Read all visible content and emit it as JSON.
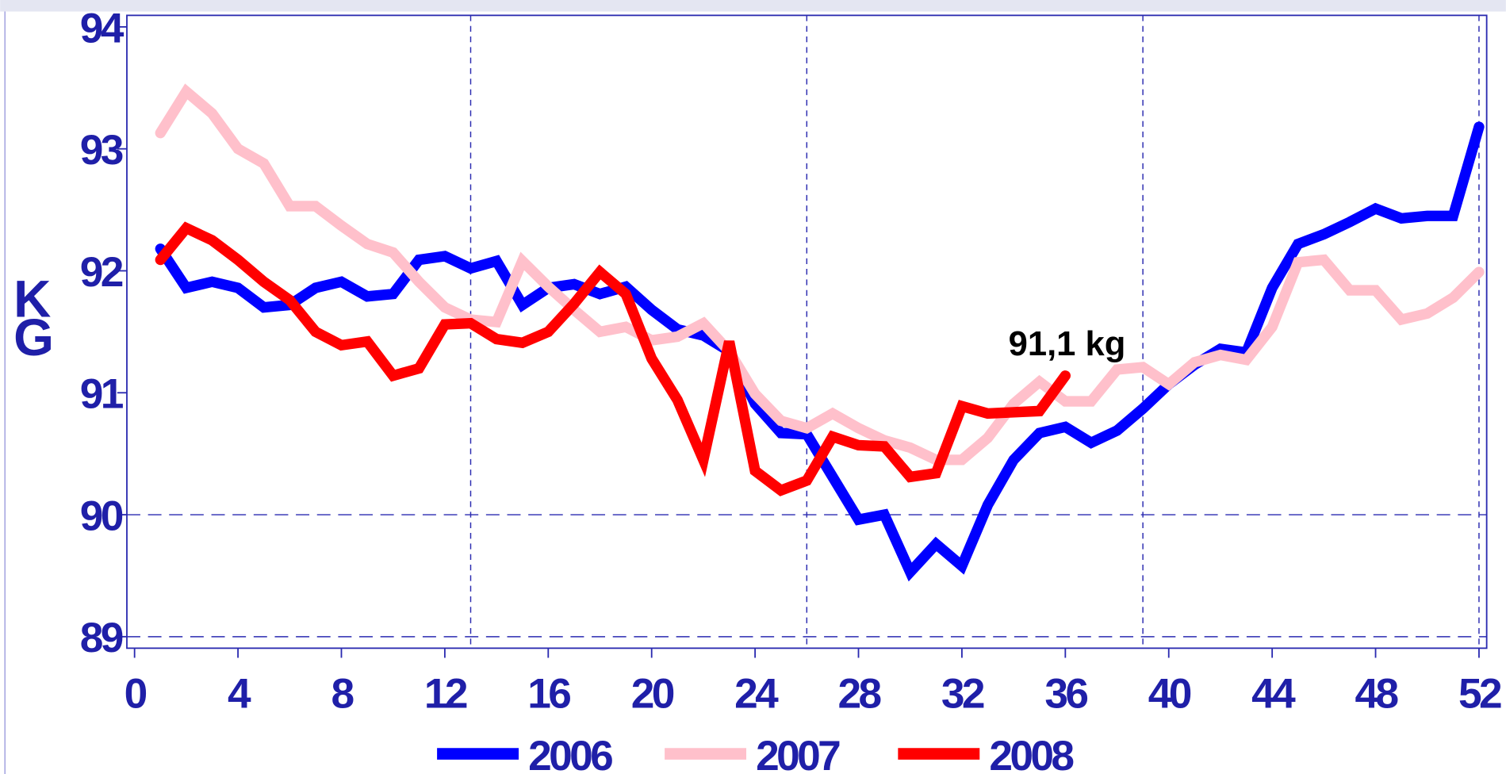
{
  "chart_data": {
    "type": "line",
    "y_label": "KG",
    "annotation": "91,1 kg",
    "x": [
      1,
      2,
      3,
      4,
      5,
      6,
      7,
      8,
      9,
      10,
      11,
      12,
      13,
      14,
      15,
      16,
      17,
      18,
      19,
      20,
      21,
      22,
      23,
      24,
      25,
      26,
      27,
      28,
      29,
      30,
      31,
      32,
      33,
      34,
      35,
      36,
      37,
      38,
      39,
      40,
      41,
      42,
      43,
      44,
      45,
      46,
      47,
      48,
      49,
      50,
      51,
      52
    ],
    "series": [
      {
        "name": "2006",
        "color": "#0000ff",
        "values": [
          92.18,
          91.86,
          91.91,
          91.86,
          91.7,
          91.72,
          91.86,
          91.91,
          91.79,
          91.81,
          92.09,
          92.12,
          92.02,
          92.08,
          91.72,
          91.86,
          91.89,
          91.81,
          91.87,
          91.68,
          91.52,
          91.47,
          91.34,
          90.91,
          90.67,
          90.66,
          90.31,
          89.96,
          90.0,
          89.53,
          89.76,
          89.58,
          90.08,
          90.45,
          90.67,
          90.72,
          90.59,
          90.69,
          90.87,
          91.07,
          91.23,
          91.36,
          91.33,
          91.86,
          92.22,
          92.3,
          92.4,
          92.51,
          92.43,
          92.45,
          92.45,
          93.18
        ]
      },
      {
        "name": "2007",
        "color": "#ffc0cb",
        "values": [
          93.13,
          93.47,
          93.29,
          93.0,
          92.88,
          92.53,
          92.53,
          92.37,
          92.22,
          92.15,
          91.91,
          91.7,
          91.6,
          91.58,
          92.08,
          91.87,
          91.68,
          91.5,
          91.54,
          91.43,
          91.46,
          91.57,
          91.34,
          90.99,
          90.77,
          90.71,
          90.83,
          90.71,
          90.61,
          90.55,
          90.45,
          90.45,
          90.63,
          90.91,
          91.09,
          90.93,
          90.93,
          91.19,
          91.21,
          91.07,
          91.25,
          91.31,
          91.27,
          91.54,
          92.07,
          92.09,
          91.84,
          91.84,
          91.6,
          91.65,
          91.78,
          91.99
        ]
      },
      {
        "name": "2008",
        "color": "#ff0000",
        "values": [
          92.09,
          92.35,
          92.25,
          92.09,
          91.91,
          91.76,
          91.5,
          91.39,
          91.42,
          91.14,
          91.2,
          91.56,
          91.57,
          91.44,
          91.41,
          91.5,
          91.73,
          91.99,
          91.81,
          91.28,
          90.94,
          90.45,
          91.42,
          90.36,
          90.2,
          90.28,
          90.64,
          90.57,
          90.56,
          90.31,
          90.34,
          90.89,
          90.83,
          90.84,
          90.85,
          91.14,
          null,
          null,
          null,
          null,
          null,
          null,
          null,
          null,
          null,
          null,
          null,
          null,
          null,
          null,
          null,
          null
        ]
      }
    ],
    "xlim": [
      0,
      52
    ],
    "xticks": [
      0,
      4,
      8,
      12,
      16,
      20,
      24,
      28,
      32,
      36,
      40,
      44,
      48,
      52
    ],
    "ylim": [
      89,
      94
    ],
    "yticks": [
      89,
      90,
      91,
      92,
      93,
      94
    ],
    "xgrid": [
      13,
      26,
      39,
      52
    ],
    "ygrid": [
      89,
      90
    ]
  }
}
